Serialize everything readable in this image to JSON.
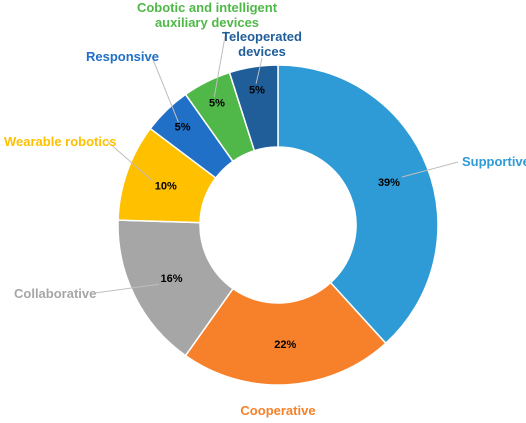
{
  "chart_data": {
    "type": "pie",
    "donut": true,
    "title": "",
    "legend": "none",
    "series": [
      {
        "name": "Supportive",
        "value": 39,
        "label": "39%",
        "color": "#2E9BD6"
      },
      {
        "name": "Cooperative",
        "value": 22,
        "label": "22%",
        "color": "#F7812B"
      },
      {
        "name": "Collaborative",
        "value": 16,
        "label": "16%",
        "color": "#A6A6A6"
      },
      {
        "name": "Wearable robotics",
        "value": 10,
        "label": "10%",
        "color": "#FFC000"
      },
      {
        "name": "Responsive",
        "value": 5,
        "label": "5%",
        "color": "#2070C8"
      },
      {
        "name": "Cobotic and intelligent auxiliary devices",
        "value": 5,
        "label": "5%",
        "color": "#4FB848"
      },
      {
        "name": "Teleoperated devices",
        "value": 5,
        "label": "5%",
        "color": "#1F5E99"
      }
    ]
  }
}
